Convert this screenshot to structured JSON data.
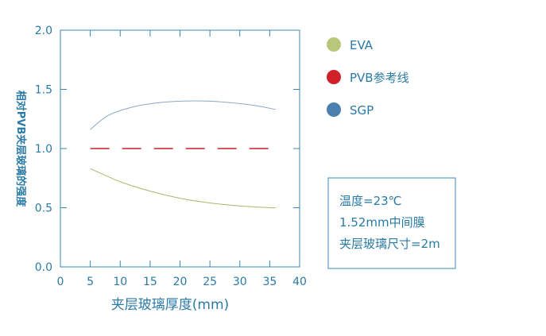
{
  "chart_data": {
    "type": "line",
    "xlabel": "夹层玻璃厚度(mm)",
    "ylabel": "相对PVB夹层玻璃的强度",
    "xlim": [
      0,
      40
    ],
    "ylim": [
      0.0,
      2.0
    ],
    "x_ticks": [
      "0",
      "5",
      "10",
      "15",
      "20",
      "25",
      "30",
      "35",
      "40"
    ],
    "y_ticks": [
      "0.0",
      "0.5",
      "1.0",
      "1.5",
      "2.0"
    ],
    "grid": false,
    "legend_position": "right",
    "series": [
      {
        "name": "EVA",
        "color": "#a6b96a",
        "marker_color": "#b8c77c",
        "style": "solid",
        "x": [
          5,
          10,
          15,
          20,
          25,
          30,
          35,
          36
        ],
        "y": [
          0.83,
          0.72,
          0.64,
          0.58,
          0.54,
          0.515,
          0.5,
          0.5
        ]
      },
      {
        "name": "PVB参考线",
        "color": "#c81e28",
        "marker_color": "#d0202a",
        "style": "dashed",
        "x": [
          5,
          36
        ],
        "y": [
          1.0,
          1.0
        ]
      },
      {
        "name": "SGP",
        "color": "#8aa9c4",
        "marker_color": "#4a7fb0",
        "style": "solid",
        "x": [
          5,
          8,
          12,
          16,
          20,
          25,
          30,
          33,
          36
        ],
        "y": [
          1.16,
          1.28,
          1.35,
          1.385,
          1.4,
          1.4,
          1.38,
          1.36,
          1.33
        ]
      }
    ],
    "annotation_lines": [
      "温度=23℃",
      "1.52mm中间膜",
      "夹层玻璃尺寸=2m"
    ]
  }
}
